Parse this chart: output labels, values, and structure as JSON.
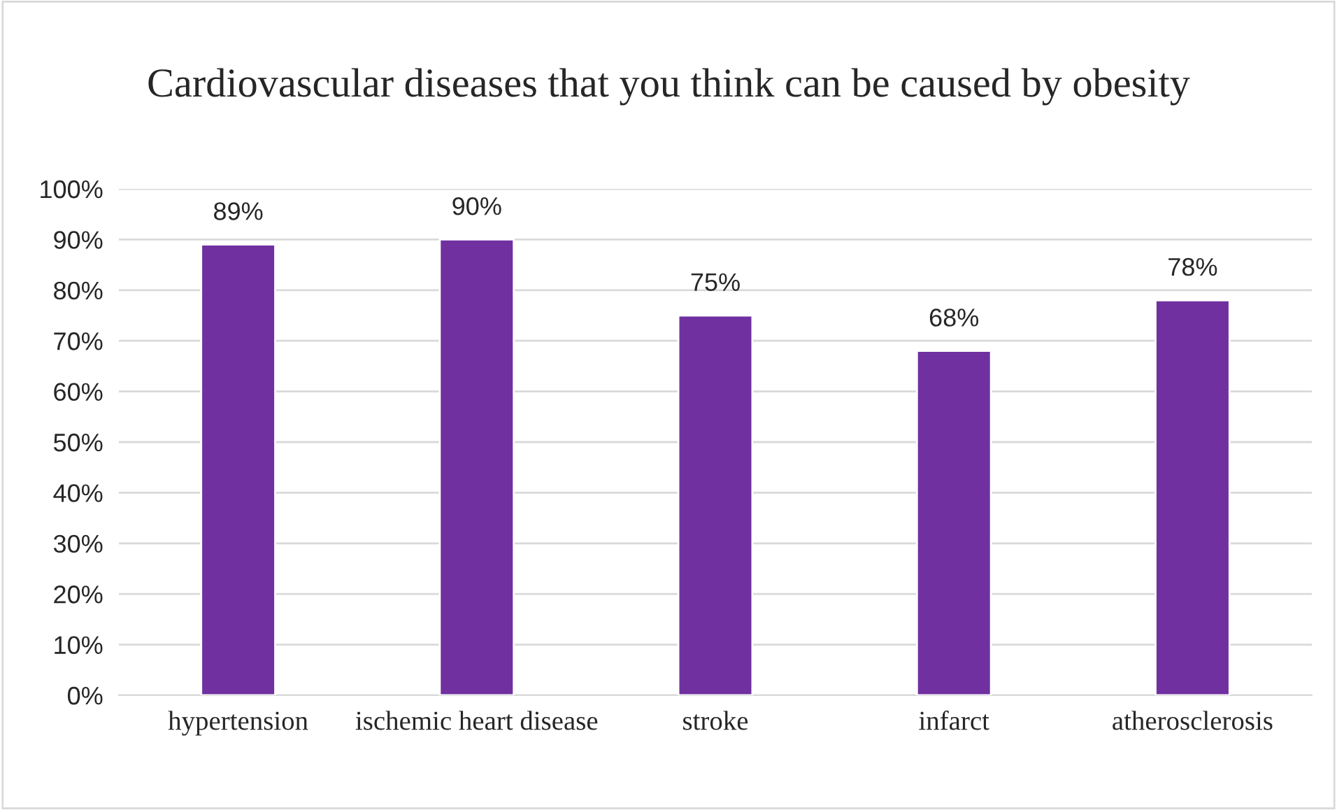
{
  "chart_data": {
    "type": "bar",
    "title": "Cardiovascular diseases that you think can be caused by obesity",
    "categories": [
      "hypertension",
      "ischemic heart disease",
      "stroke",
      "infarct",
      "atherosclerosis"
    ],
    "values": [
      89,
      90,
      75,
      68,
      78
    ],
    "value_labels": [
      "89%",
      "90%",
      "75%",
      "68%",
      "78%"
    ],
    "color": "#7030a0",
    "ylim": [
      0,
      100
    ],
    "yticks": [
      {
        "value": 0,
        "label": "0%"
      },
      {
        "value": 10,
        "label": "10%"
      },
      {
        "value": 20,
        "label": "20%"
      },
      {
        "value": 30,
        "label": "30%"
      },
      {
        "value": 40,
        "label": "40%"
      },
      {
        "value": 50,
        "label": "50%"
      },
      {
        "value": 60,
        "label": "60%"
      },
      {
        "value": 70,
        "label": "70%"
      },
      {
        "value": 80,
        "label": "80%"
      },
      {
        "value": 90,
        "label": "90%"
      },
      {
        "value": 100,
        "label": "100%"
      }
    ],
    "grid": "y",
    "legend": false
  }
}
